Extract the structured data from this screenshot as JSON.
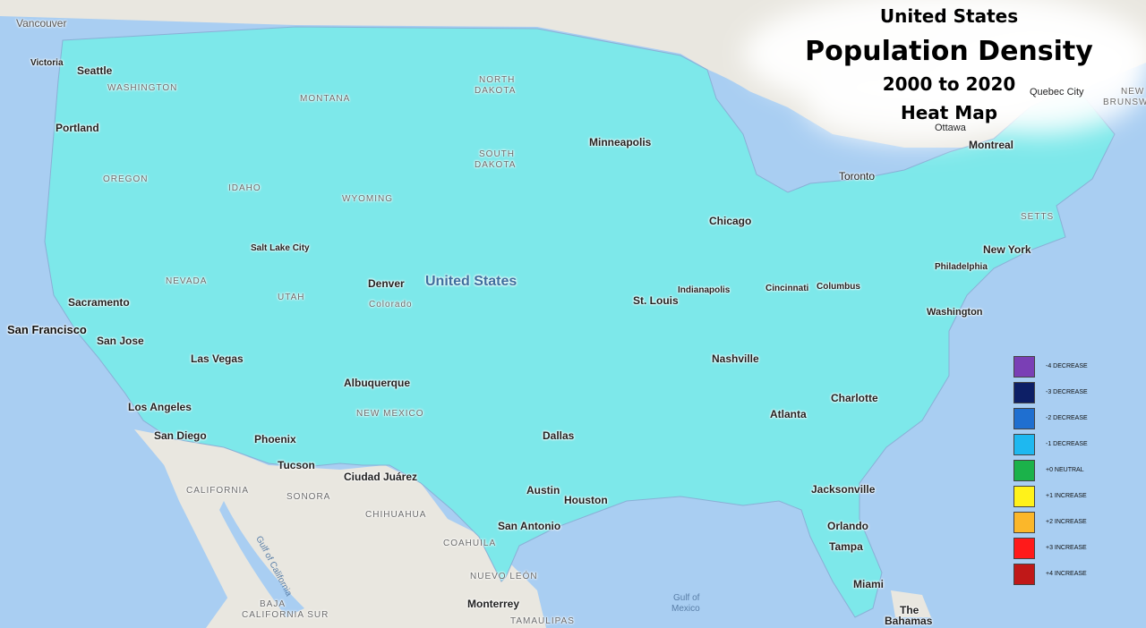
{
  "title": {
    "line1": "United States",
    "line2": "Population Density",
    "line3": "2000 to 2020",
    "line4": "Heat Map"
  },
  "legend": [
    {
      "label": "-4 DECREASE",
      "color": "#7a3fb5"
    },
    {
      "label": "-3 DECREASE",
      "color": "#0d1f66"
    },
    {
      "label": "-2 DECREASE",
      "color": "#1f6fd0"
    },
    {
      "label": "-1 DECREASE",
      "color": "#1eb8f0"
    },
    {
      "label": "+0 NEUTRAL",
      "color": "#1bb24a"
    },
    {
      "label": "+1 INCREASE",
      "color": "#fff21a"
    },
    {
      "label": "+2 INCREASE",
      "color": "#fbb72a"
    },
    {
      "label": "+3 INCREASE",
      "color": "#ff1a1a"
    },
    {
      "label": "+4 INCREASE",
      "color": "#c01818"
    }
  ],
  "country_label": "United States",
  "cities": {
    "vancouver": "Vancouver",
    "victoria": "Victoria",
    "seattle": "Seattle",
    "portland": "Portland",
    "sacramento": "Sacramento",
    "san_francisco": "San Francisco",
    "san_jose": "San Jose",
    "las_vegas": "Las Vegas",
    "los_angeles": "Los Angeles",
    "san_diego": "San Diego",
    "phoenix": "Phoenix",
    "tucson": "Tucson",
    "salt_lake_city": "Salt Lake City",
    "denver": "Denver",
    "colorado": "Colorado",
    "albuquerque": "Albuquerque",
    "ciudad_juarez": "Ciudad Juárez",
    "minneapolis": "Minneapolis",
    "chicago": "Chicago",
    "indianapolis": "Indianapolis",
    "cincinnati": "Cincinnati",
    "columbus": "Columbus",
    "st_louis": "St. Louis",
    "nashville": "Nashville",
    "atlanta": "Atlanta",
    "charlotte": "Charlotte",
    "dallas": "Dallas",
    "austin": "Austin",
    "houston": "Houston",
    "san_antonio": "San Antonio",
    "jacksonville": "Jacksonville",
    "orlando": "Orlando",
    "tampa": "Tampa",
    "miami": "Miami",
    "toronto": "Toronto",
    "ottawa": "Ottawa",
    "montreal": "Montreal",
    "quebec_city": "Quebec City",
    "philadelphia": "Philadelphia",
    "new_york": "New York",
    "washington": "Washington",
    "monterrey": "Monterrey",
    "bahamas_1": "The",
    "bahamas_2": "Bahamas"
  },
  "regions": {
    "washington": "WASHINGTON",
    "montana": "MONTANA",
    "north_dakota_1": "NORTH",
    "north_dakota_2": "DAKOTA",
    "south_dakota_1": "SOUTH",
    "south_dakota_2": "DAKOTA",
    "oregon": "OREGON",
    "idaho": "IDAHO",
    "wyoming": "WYOMING",
    "nevada": "NEVADA",
    "utah": "UTAH",
    "new_mexico": "NEW MEXICO",
    "california": "CALIFORNIA",
    "baja_california_1": "BAJA",
    "baja_california_2": "CALIFORNIA",
    "baja_california_sur": "CALIFORNIA SUR",
    "sonora": "SONORA",
    "chihuahua": "CHIHUAHUA",
    "coahuila": "COAHUILA",
    "nuevo_leon": "NUEVO LEÓN",
    "tamaulipas": "TAMAULIPAS",
    "massachusetts": "SETTS",
    "new_brunswick_1": "NEW",
    "new_brunswick_2": "BRUNSWI"
  },
  "water": {
    "gulf_of_california": "Gulf of California",
    "gulf_of_mexico_1": "Gulf of",
    "gulf_of_mexico_2": "Mexico"
  },
  "colors": {
    "ocean": "#a9cef2",
    "land_outside": "#e8e6df",
    "base_fill": "#7ce8ea"
  }
}
